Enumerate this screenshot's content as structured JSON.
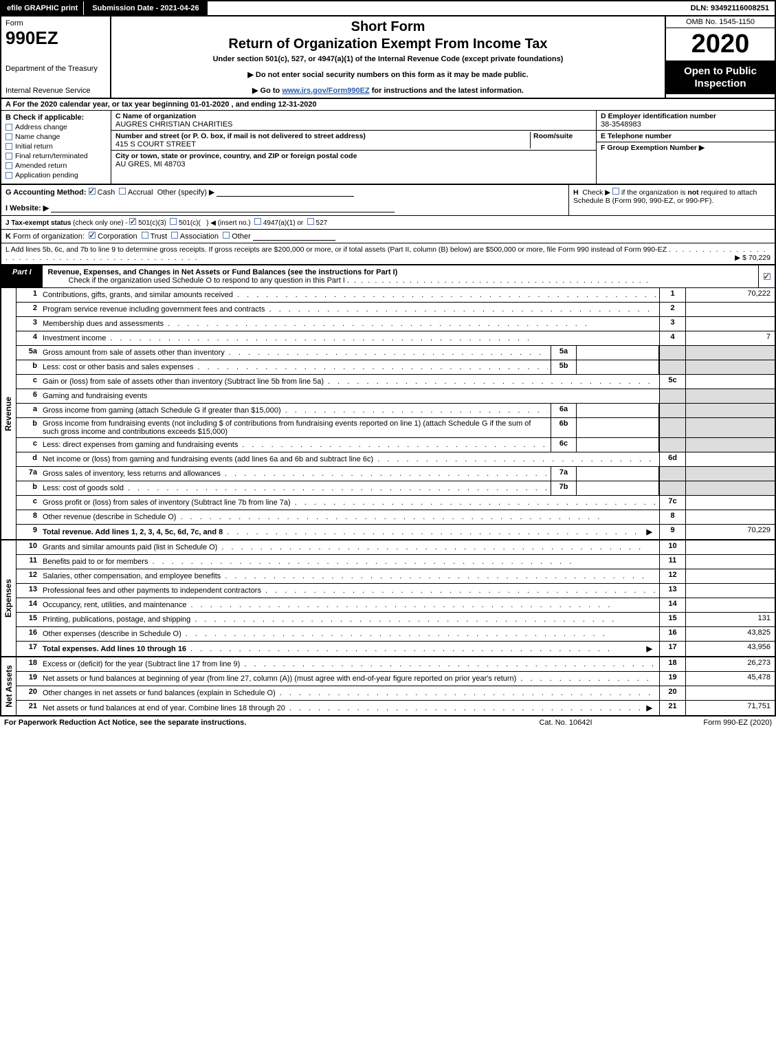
{
  "topbar": {
    "efile": "efile GRAPHIC print",
    "submission": "Submission Date - 2021-04-26",
    "dln": "DLN: 93492116008251"
  },
  "header": {
    "form_word": "Form",
    "form_num": "990EZ",
    "dept": "Department of the Treasury",
    "irs": "Internal Revenue Service",
    "short_form": "Short Form",
    "title": "Return of Organization Exempt From Income Tax",
    "under": "Under section 501(c), 527, or 4947(a)(1) of the Internal Revenue Code (except private foundations)",
    "note1": "▶ Do not enter social security numbers on this form as it may be made public.",
    "note2_pre": "▶ Go to ",
    "note2_link": "www.irs.gov/Form990EZ",
    "note2_post": " for instructions and the latest information.",
    "omb": "OMB No. 1545-1150",
    "year": "2020",
    "open": "Open to Public Inspection"
  },
  "period": "A  For the 2020 calendar year, or tax year beginning 01-01-2020 , and ending 12-31-2020",
  "boxB": {
    "label": "B  Check if applicable:",
    "items": [
      "Address change",
      "Name change",
      "Initial return",
      "Final return/terminated",
      "Amended return",
      "Application pending"
    ]
  },
  "boxC": {
    "name_lbl": "C Name of organization",
    "name": "AUGRES CHRISTIAN CHARITIES",
    "street_lbl": "Number and street (or P. O. box, if mail is not delivered to street address)",
    "room_lbl": "Room/suite",
    "street": "415 S COURT STREET",
    "city_lbl": "City or town, state or province, country, and ZIP or foreign postal code",
    "city": "AU GRES, MI  48703"
  },
  "boxD": {
    "lbl": "D Employer identification number",
    "val": "38-3548983"
  },
  "boxE": {
    "lbl": "E Telephone number",
    "val": ""
  },
  "boxF": {
    "lbl": "F Group Exemption Number  ▶",
    "val": ""
  },
  "rowG": {
    "label": "G Accounting Method:",
    "cash": "Cash",
    "accrual": "Accrual",
    "other": "Other (specify) ▶"
  },
  "rowH": "H  Check ▶     if the organization is not required to attach Schedule B (Form 990, 990-EZ, or 990-PF).",
  "rowI": "I Website: ▶",
  "rowJ": "J Tax-exempt status (check only one) -   501(c)(3)    501(c)(  ) ◀ (insert no.)    4947(a)(1) or    527",
  "rowK": "K Form of organization:    Corporation    Trust    Association    Other",
  "rowL": {
    "text": "L Add lines 5b, 6c, and 7b to line 9 to determine gross receipts. If gross receipts are $200,000 or more, or if total assets (Part II, column (B) below) are $500,000 or more, file Form 990 instead of Form 990-EZ",
    "amt": "▶ $ 70,229"
  },
  "part1": {
    "tab": "Part I",
    "title": "Revenue, Expenses, and Changes in Net Assets or Fund Balances (see the instructions for Part I)",
    "sub": "Check if the organization used Schedule O to respond to any question in this Part I"
  },
  "sections": {
    "revenue_label": "Revenue",
    "expenses_label": "Expenses",
    "netassets_label": "Net Assets"
  },
  "lines": {
    "l1": {
      "n": "1",
      "d": "Contributions, gifts, grants, and similar amounts received",
      "rn": "1",
      "rv": "70,222"
    },
    "l2": {
      "n": "2",
      "d": "Program service revenue including government fees and contracts",
      "rn": "2",
      "rv": ""
    },
    "l3": {
      "n": "3",
      "d": "Membership dues and assessments",
      "rn": "3",
      "rv": ""
    },
    "l4": {
      "n": "4",
      "d": "Investment income",
      "rn": "4",
      "rv": "7"
    },
    "l5a": {
      "n": "5a",
      "d": "Gross amount from sale of assets other than inventory",
      "sc": "5a",
      "sv": ""
    },
    "l5b": {
      "n": "b",
      "d": "Less: cost or other basis and sales expenses",
      "sc": "5b",
      "sv": ""
    },
    "l5c": {
      "n": "c",
      "d": "Gain or (loss) from sale of assets other than inventory (Subtract line 5b from line 5a)",
      "rn": "5c",
      "rv": ""
    },
    "l6": {
      "n": "6",
      "d": "Gaming and fundraising events"
    },
    "l6a": {
      "n": "a",
      "d": "Gross income from gaming (attach Schedule G if greater than $15,000)",
      "sc": "6a",
      "sv": ""
    },
    "l6b": {
      "n": "b",
      "d": "Gross income from fundraising events (not including $               of contributions from fundraising events reported on line 1) (attach Schedule G if the sum of such gross income and contributions exceeds $15,000)",
      "sc": "6b",
      "sv": ""
    },
    "l6c": {
      "n": "c",
      "d": "Less: direct expenses from gaming and fundraising events",
      "sc": "6c",
      "sv": ""
    },
    "l6d": {
      "n": "d",
      "d": "Net income or (loss) from gaming and fundraising events (add lines 6a and 6b and subtract line 6c)",
      "rn": "6d",
      "rv": ""
    },
    "l7a": {
      "n": "7a",
      "d": "Gross sales of inventory, less returns and allowances",
      "sc": "7a",
      "sv": ""
    },
    "l7b": {
      "n": "b",
      "d": "Less: cost of goods sold",
      "sc": "7b",
      "sv": ""
    },
    "l7c": {
      "n": "c",
      "d": "Gross profit or (loss) from sales of inventory (Subtract line 7b from line 7a)",
      "rn": "7c",
      "rv": ""
    },
    "l8": {
      "n": "8",
      "d": "Other revenue (describe in Schedule O)",
      "rn": "8",
      "rv": ""
    },
    "l9": {
      "n": "9",
      "d": "Total revenue. Add lines 1, 2, 3, 4, 5c, 6d, 7c, and 8",
      "rn": "9",
      "rv": "70,229",
      "bold": true,
      "arrow": true
    },
    "l10": {
      "n": "10",
      "d": "Grants and similar amounts paid (list in Schedule O)",
      "rn": "10",
      "rv": ""
    },
    "l11": {
      "n": "11",
      "d": "Benefits paid to or for members",
      "rn": "11",
      "rv": ""
    },
    "l12": {
      "n": "12",
      "d": "Salaries, other compensation, and employee benefits",
      "rn": "12",
      "rv": ""
    },
    "l13": {
      "n": "13",
      "d": "Professional fees and other payments to independent contractors",
      "rn": "13",
      "rv": ""
    },
    "l14": {
      "n": "14",
      "d": "Occupancy, rent, utilities, and maintenance",
      "rn": "14",
      "rv": ""
    },
    "l15": {
      "n": "15",
      "d": "Printing, publications, postage, and shipping",
      "rn": "15",
      "rv": "131"
    },
    "l16": {
      "n": "16",
      "d": "Other expenses (describe in Schedule O)",
      "rn": "16",
      "rv": "43,825"
    },
    "l17": {
      "n": "17",
      "d": "Total expenses. Add lines 10 through 16",
      "rn": "17",
      "rv": "43,956",
      "bold": true,
      "arrow": true
    },
    "l18": {
      "n": "18",
      "d": "Excess or (deficit) for the year (Subtract line 17 from line 9)",
      "rn": "18",
      "rv": "26,273"
    },
    "l19": {
      "n": "19",
      "d": "Net assets or fund balances at beginning of year (from line 27, column (A)) (must agree with end-of-year figure reported on prior year's return)",
      "rn": "19",
      "rv": "45,478"
    },
    "l20": {
      "n": "20",
      "d": "Other changes in net assets or fund balances (explain in Schedule O)",
      "rn": "20",
      "rv": ""
    },
    "l21": {
      "n": "21",
      "d": "Net assets or fund balances at end of year. Combine lines 18 through 20",
      "rn": "21",
      "rv": "71,751",
      "arrow": true
    }
  },
  "footer": {
    "l": "For Paperwork Reduction Act Notice, see the separate instructions.",
    "c": "Cat. No. 10642I",
    "r": "Form 990-EZ (2020)"
  },
  "dots": ". . . . . . . . . . . . . . . . . . . . . . . . . . . . . . . . . . . . . . . . . . . ."
}
